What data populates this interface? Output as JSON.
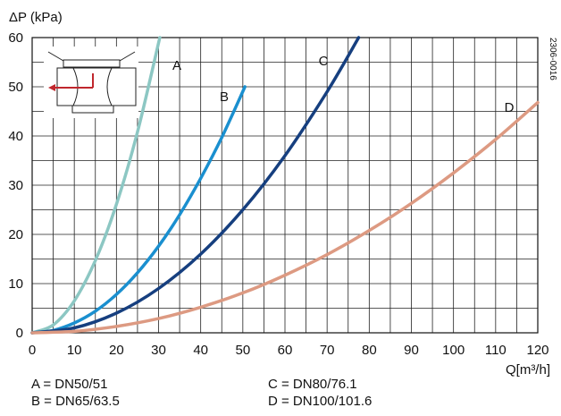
{
  "chart_data": {
    "type": "line",
    "ylabel": "ΔP (kPa)",
    "xlabel": "Q[m³/h]",
    "xlim": [
      0,
      120
    ],
    "ylim": [
      0,
      60
    ],
    "xticks": [
      0,
      10,
      20,
      30,
      40,
      50,
      60,
      70,
      80,
      90,
      100,
      110,
      120
    ],
    "yticks": [
      0,
      10,
      20,
      30,
      40,
      50,
      60
    ],
    "grid": true,
    "figure_code": "2306-0016",
    "series": [
      {
        "name": "A",
        "color": "#8cc7c3",
        "x": [
          0,
          5,
          10,
          15,
          20,
          25,
          30.3
        ],
        "y": [
          0,
          1.6,
          6.5,
          14.7,
          26.1,
          40.8,
          60
        ]
      },
      {
        "name": "B",
        "color": "#1a8fcf",
        "x": [
          0,
          5,
          10,
          15,
          20,
          25,
          30,
          35,
          40,
          45,
          50.5
        ],
        "y": [
          0,
          0.5,
          2.0,
          4.4,
          7.8,
          12.2,
          17.6,
          24.0,
          31.4,
          39.7,
          50
        ]
      },
      {
        "name": "C",
        "color": "#163f7f",
        "x": [
          0,
          10,
          20,
          30,
          40,
          50,
          60,
          70,
          77.5
        ],
        "y": [
          0,
          1.0,
          4.0,
          9.0,
          16.0,
          25.0,
          36.0,
          49.0,
          60
        ]
      },
      {
        "name": "D",
        "color": "#dd9a82",
        "x": [
          0,
          10,
          20,
          30,
          40,
          50,
          60,
          70,
          80,
          90,
          100,
          110,
          120
        ],
        "y": [
          0,
          0.3,
          1.3,
          2.9,
          5.2,
          8.1,
          11.7,
          15.9,
          20.8,
          26.3,
          32.5,
          39.3,
          46.8
        ]
      }
    ],
    "curve_labels": [
      "A",
      "B",
      "C",
      "D"
    ]
  },
  "legend": {
    "a": "A = DN50/51",
    "b": "B = DN65/63.5",
    "c": "C = DN80/76.1",
    "d": "D = DN100/101.6"
  }
}
